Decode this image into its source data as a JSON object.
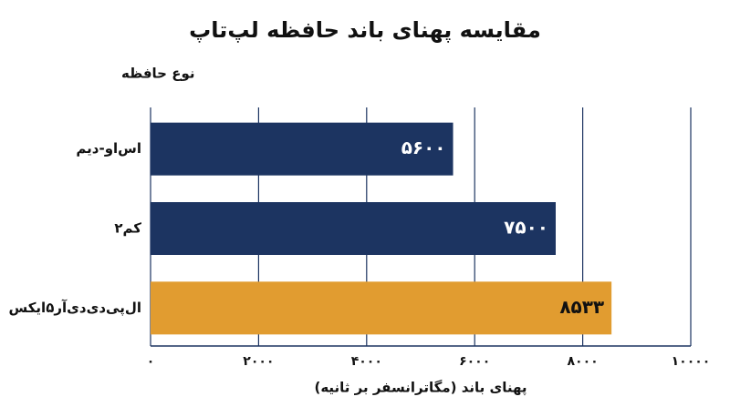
{
  "chart_data": {
    "type": "bar",
    "orientation": "horizontal",
    "title": "مقایسه پهنای باند حافظه لپ‌تاپ",
    "y_label": "نوع حافظه",
    "x_label": "پهنای باند (مگاترانسفر بر ثانیه)",
    "categories": [
      "اس‌او-دیم",
      "کم۲",
      "ال‌پی‌دی‌دی‌آر۵ایکس"
    ],
    "values": [
      5600,
      7500,
      8533
    ],
    "value_labels": [
      "۵۶۰۰",
      "۷۵۰۰",
      "۸۵۳۳"
    ],
    "colors": [
      "#1c3461",
      "#1c3461",
      "#e19c30"
    ],
    "xlim": [
      0,
      10000
    ],
    "xticks": [
      {
        "value": 0,
        "label": "۰"
      },
      {
        "value": 2000,
        "label": "۲۰۰۰"
      },
      {
        "value": 4000,
        "label": "۴۰۰۰"
      },
      {
        "value": 6000,
        "label": "۶۰۰۰"
      },
      {
        "value": 8000,
        "label": "۸۰۰۰"
      },
      {
        "value": 10000,
        "label": "۱۰۰۰۰"
      }
    ],
    "grid": true
  }
}
